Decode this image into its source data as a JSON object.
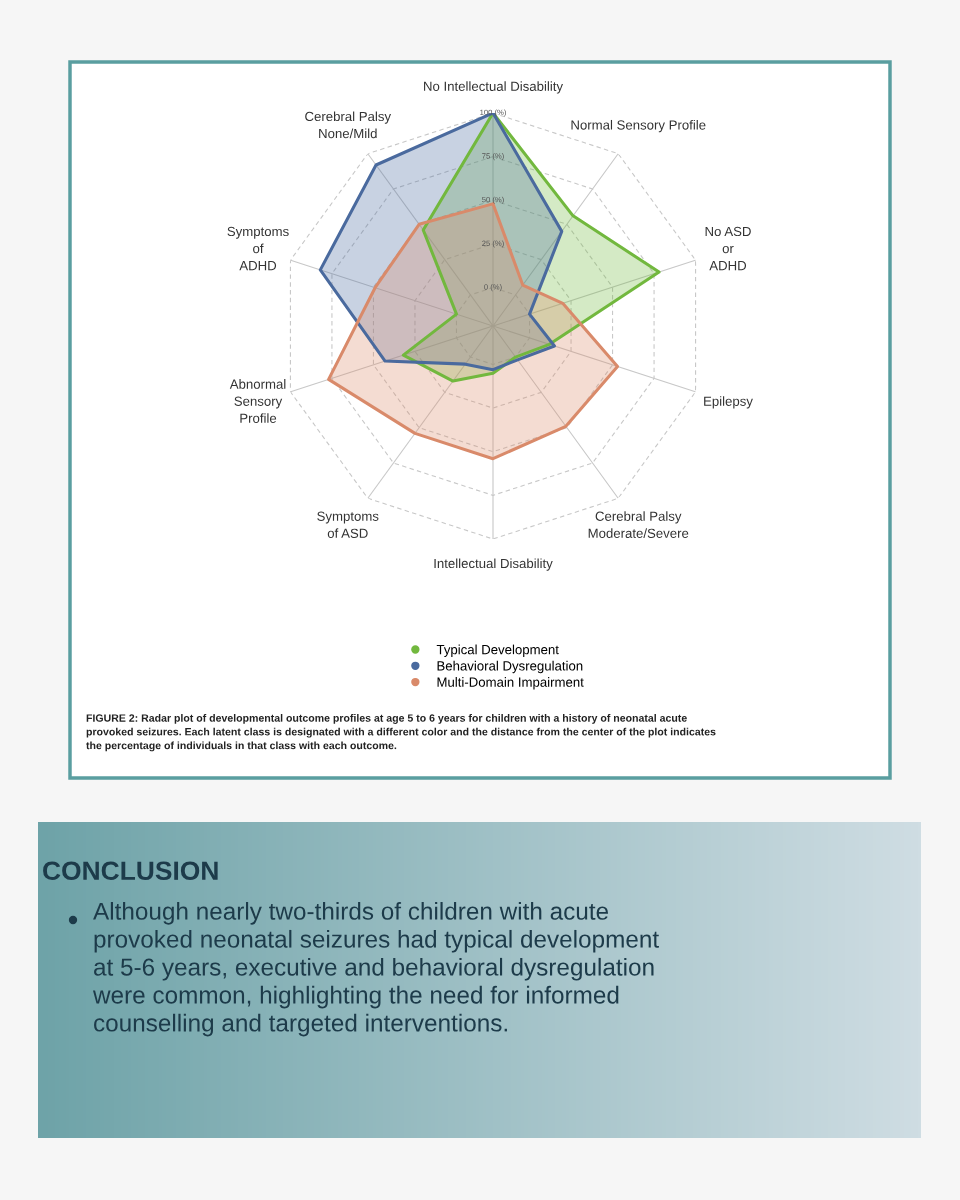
{
  "chart_data": {
    "type": "radar",
    "categories": [
      "No Intellectual Disability",
      "Normal Sensory Profile",
      "No ASD\nor\nADHD",
      "Epilepsy",
      "Cerebral Palsy\nModerate/Severe",
      "Intellectual Disability",
      "Symptoms\nof ASD",
      "Abnormal\nSensory\nProfile",
      "Symptoms\nof\nADHD",
      "Cerebral Palsy\nNone/Mild"
    ],
    "series": [
      {
        "name": "Typical Development",
        "color": "#72b83e",
        "values": [
          100,
          56,
          78,
          12,
          0,
          5,
          17,
          32,
          0,
          46
        ]
      },
      {
        "name": "Behavioral Dysregulation",
        "color": "#4a6a9e",
        "values": [
          100,
          45,
          0,
          15,
          2,
          3,
          5,
          43,
          82,
          92
        ]
      },
      {
        "name": "Multi-Domain Impairment",
        "color": "#d98a6a",
        "values": [
          48,
          7,
          20,
          53,
          49,
          54,
          54,
          77,
          49,
          50
        ]
      }
    ],
    "ylim": [
      -22,
      100
    ],
    "yticks": [
      {
        "value": 0,
        "label": "0 (%)"
      },
      {
        "value": 25,
        "label": "25 (%)"
      },
      {
        "value": 50,
        "label": "50 (%)"
      },
      {
        "value": 75,
        "label": "75 (%)"
      },
      {
        "value": 100,
        "label": "100 (%)"
      }
    ],
    "grid": true,
    "legend": "bottom",
    "marker": "none",
    "line_style": "solid",
    "annotations": [
      "FIGURE 2: Radar plot of developmental outcome profiles at age 5 to 6 years for children with a history of neonatal acute\nprovoked seizures. Each latent class is designated with a different color and the distance from the center of the plot indicates\nthe percentage of individuals in that class with each outcome.",
      "CONCLUSION",
      "Although nearly two-thirds of children with acute\nprovoked neonatal seizures had typical development\nat 5-6 years, executive and behavioral dysregulation\nwere common, highlighting the need for informed\ncounselling and targeted interventions."
    ]
  }
}
